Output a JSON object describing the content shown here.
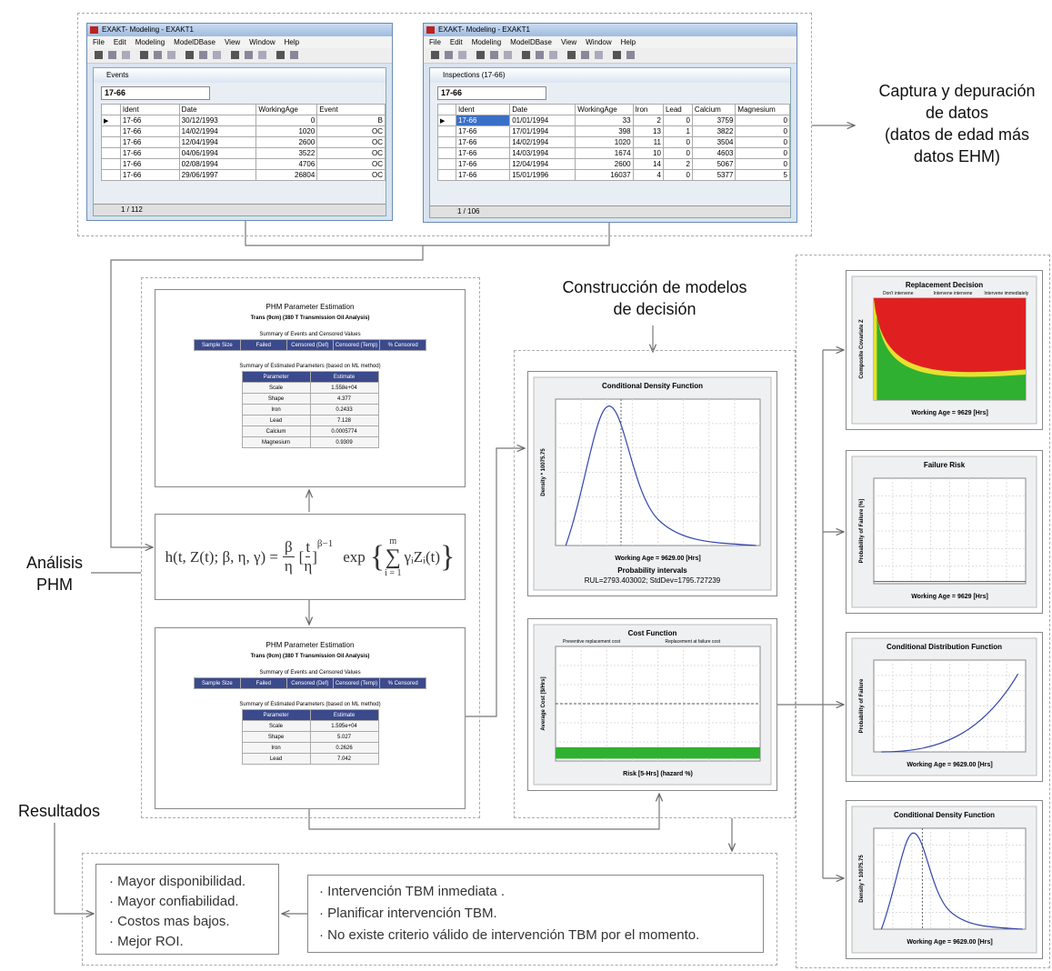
{
  "captura": [
    "Captura y depuración",
    "de datos",
    "(datos de edad más",
    "datos EHM)"
  ],
  "construccion": [
    "Construcción de modelos",
    "de decisión"
  ],
  "analisis": [
    "Análisis",
    "PHM"
  ],
  "resultados_label": "Resultados",
  "windows": [
    {
      "title": "EXAKT- Modeling - EXAKT1",
      "menu": [
        "File",
        "Edit",
        "Modeling",
        "ModelDBase",
        "View",
        "Window",
        "Help"
      ],
      "child": "Events",
      "combo": "17-66",
      "columns": [
        "Ident",
        "Date",
        "WorkingAge",
        "Event"
      ],
      "rows": [
        [
          "17-66",
          "30/12/1993",
          "0",
          "B"
        ],
        [
          "17-66",
          "14/02/1994",
          "1020",
          "OC"
        ],
        [
          "17-66",
          "12/04/1994",
          "2600",
          "OC"
        ],
        [
          "17-66",
          "04/06/1994",
          "3522",
          "OC"
        ],
        [
          "17-66",
          "02/08/1994",
          "4706",
          "OC"
        ],
        [
          "17-66",
          "29/06/1997",
          "26804",
          "OC"
        ]
      ],
      "footer": "1 / 112"
    },
    {
      "title": "EXAKT- Modeling - EXAKT1",
      "menu": [
        "File",
        "Edit",
        "Modeling",
        "ModelDBase",
        "View",
        "Window",
        "Help"
      ],
      "child": "Inspections (17-66)",
      "combo": "17-66",
      "columns": [
        "Ident",
        "Date",
        "WorkingAge",
        "Iron",
        "Lead",
        "Calcium",
        "Magnesium"
      ],
      "rows": [
        [
          "17-66",
          "01/01/1994",
          "33",
          "2",
          "0",
          "3759",
          "0"
        ],
        [
          "17-66",
          "17/01/1994",
          "398",
          "13",
          "1",
          "3822",
          "0"
        ],
        [
          "17-66",
          "14/02/1994",
          "1020",
          "11",
          "0",
          "3504",
          "0"
        ],
        [
          "17-66",
          "14/03/1994",
          "1674",
          "10",
          "0",
          "4603",
          "0"
        ],
        [
          "17-66",
          "12/04/1994",
          "2600",
          "14",
          "2",
          "5067",
          "0"
        ],
        [
          "17-66",
          "15/01/1996",
          "16037",
          "4",
          "0",
          "5377",
          "5"
        ]
      ],
      "footer": "1 / 106"
    }
  ],
  "phm": [
    {
      "title": "PHM Parameter Estimation",
      "subtitle": "Trans (9cm) (380 T Transmission Oil Analysis)",
      "events_caption": "Summary of Events and Censored Values",
      "events_columns": [
        "Sample Size",
        "Failed",
        "Censored (Def)",
        "Censored (Temp)",
        "% Censored"
      ],
      "params_caption": "Summary of Estimated Parameters (based on ML method)",
      "params_columns": [
        "Parameter",
        "Estimate"
      ],
      "params_rows": [
        [
          "Scale",
          "1.558e+04"
        ],
        [
          "Shape",
          "4.377"
        ],
        [
          "Iron",
          "0.2433"
        ],
        [
          "Lead",
          "7.128"
        ],
        [
          "Calcium",
          "0.0005774"
        ],
        [
          "Magnesium",
          "0.9309"
        ]
      ]
    },
    {
      "title": "PHM Parameter Estimation",
      "subtitle": "Trans (9cm) (380 T Transmission Oil Analysis)",
      "events_caption": "Summary of Events and Censored Values",
      "events_columns": [
        "Sample Size",
        "Failed",
        "Censored (Def)",
        "Censored (Temp)",
        "% Censored"
      ],
      "params_caption": "Summary of Estimated Parameters (based on ML method)",
      "params_columns": [
        "Parameter",
        "Estimate"
      ],
      "params_rows": [
        [
          "Scale",
          "1.595e+04"
        ],
        [
          "Shape",
          "5.027"
        ],
        [
          "Iron",
          "0.2626"
        ],
        [
          "Lead",
          "7.042"
        ]
      ]
    }
  ],
  "formula": {
    "lhs": "h(t, Z(t);  β, η, γ) =",
    "num": "β",
    "den": "η",
    "bracket_num": "t",
    "bracket_den": "η",
    "power": "β−1",
    "exp": "exp",
    "sum_top": "m",
    "sum_bottom": "i = 1",
    "body": "γᵢZᵢ(t)"
  },
  "charts": {
    "density": {
      "title": "Conditional Density Function",
      "xlabel": "Working Age = 9629.00 [Hrs]",
      "ylabel": "Density * 10075.75",
      "note_title": "Probability intervals",
      "note": "RUL=2793.403002; StdDev=1795.727239"
    },
    "cost": {
      "title": "Cost Function",
      "legend": [
        "Preventive replacement cost",
        "Replacement at failure cost"
      ],
      "xlabel": "Risk [5-Hrs] (hazard %)",
      "ylabel": "Average Cost [$/Hrs]"
    },
    "replacement": {
      "title": "Replacement Decision",
      "legend": [
        "Don't intervene",
        "Intervene intervene",
        "Intervene immediately"
      ],
      "xlabel": "Working Age = 9629 [Hrs]",
      "ylabel": "Composite Covariate Z"
    },
    "risk": {
      "title": "Failure Risk",
      "xlabel": "Working Age = 9629 [Hrs]",
      "ylabel": "Probability of Failure [%]"
    },
    "distribution": {
      "title": "Conditional Distribution Function",
      "xlabel": "Working Age = 9629.00 [Hrs]",
      "ylabel": "Probability of Failure"
    },
    "density2": {
      "title": "Conditional Density Function",
      "xlabel": "Working Age = 9629.00 [Hrs]",
      "ylabel": "Density * 10075.75"
    }
  },
  "results_left": [
    "Mayor disponibilidad.",
    "Mayor confiabilidad.",
    "Costos mas bajos.",
    "Mejor ROI."
  ],
  "results_right": [
    "Intervención TBM inmediata .",
    "Planificar intervención TBM.",
    "No existe criterio válido de intervención TBM por el momento."
  ]
}
